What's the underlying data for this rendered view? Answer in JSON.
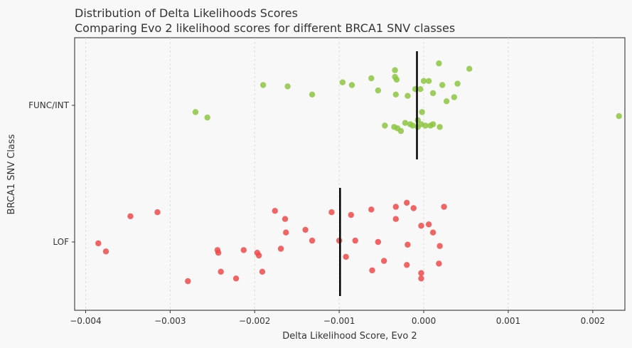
{
  "chart_data": {
    "type": "scatter",
    "title": "Distribution of Delta Likelihoods Scores",
    "subtitle": "Comparing Evo 2 likelihood scores for different BRCA1 SNV classes",
    "xlabel": "Delta Likelihood Score, Evo 2",
    "ylabel": "BRCA1 SNV Class",
    "xlim": [
      -0.00413,
      0.00238
    ],
    "x_ticks": [
      -0.004,
      -0.003,
      -0.002,
      -0.001,
      0.0,
      0.001,
      0.002
    ],
    "x_tick_labels": [
      "−0.004",
      "−0.003",
      "−0.002",
      "−0.001",
      "0.000",
      "0.001",
      "0.002"
    ],
    "grid": "vertical dashed",
    "categories": [
      "FUNC/INT",
      "LOF"
    ],
    "colors": {
      "FUNC/INT": "#8dc63f",
      "LOF": "#f04a4a",
      "median": "#000000",
      "background": "#f8f8f8"
    },
    "series": [
      {
        "name": "FUNC/INT",
        "median": -8e-05,
        "points": [
          {
            "x": -0.0027,
            "j": 0.05
          },
          {
            "x": -0.00256,
            "j": 0.09
          },
          {
            "x": -0.0019,
            "j": -0.15
          },
          {
            "x": -0.00161,
            "j": -0.14
          },
          {
            "x": -0.00132,
            "j": -0.08
          },
          {
            "x": -0.00096,
            "j": -0.17
          },
          {
            "x": -0.00085,
            "j": -0.15
          },
          {
            "x": -0.00062,
            "j": -0.2
          },
          {
            "x": -0.00054,
            "j": -0.11
          },
          {
            "x": -0.00046,
            "j": 0.15
          },
          {
            "x": -0.00034,
            "j": -0.26
          },
          {
            "x": -0.00034,
            "j": -0.21
          },
          {
            "x": -0.00032,
            "j": -0.19
          },
          {
            "x": -0.00033,
            "j": -0.08
          },
          {
            "x": -0.00035,
            "j": 0.16
          },
          {
            "x": -0.00031,
            "j": 0.17
          },
          {
            "x": -0.00027,
            "j": 0.19
          },
          {
            "x": -0.00022,
            "j": 0.13
          },
          {
            "x": -0.00019,
            "j": -0.07
          },
          {
            "x": -0.00016,
            "j": 0.14
          },
          {
            "x": -0.00013,
            "j": 0.15
          },
          {
            "x": -0.0001,
            "j": -0.12
          },
          {
            "x": -7e-05,
            "j": 0.11
          },
          {
            "x": -7e-05,
            "j": 0.16
          },
          {
            "x": -4e-05,
            "j": -0.12
          },
          {
            "x": -3e-05,
            "j": 0.14
          },
          {
            "x": -2e-05,
            "j": 0.05
          },
          {
            "x": 0.0,
            "j": -0.18
          },
          {
            "x": 2e-05,
            "j": 0.15
          },
          {
            "x": 6e-05,
            "j": -0.18
          },
          {
            "x": 8e-05,
            "j": 0.15
          },
          {
            "x": 0.00011,
            "j": 0.14
          },
          {
            "x": 0.00011,
            "j": -0.09
          },
          {
            "x": 0.00018,
            "j": -0.31
          },
          {
            "x": 0.00019,
            "j": 0.16
          },
          {
            "x": 0.00022,
            "j": -0.15
          },
          {
            "x": 0.00027,
            "j": -0.03
          },
          {
            "x": 0.00036,
            "j": -0.06
          },
          {
            "x": 0.0004,
            "j": -0.16
          },
          {
            "x": 0.00054,
            "j": -0.27
          },
          {
            "x": 0.00231,
            "j": 0.08
          }
        ]
      },
      {
        "name": "LOF",
        "median": -0.00099,
        "points": [
          {
            "x": -0.00385,
            "j": 0.01
          },
          {
            "x": -0.00376,
            "j": 0.07
          },
          {
            "x": -0.00347,
            "j": -0.19
          },
          {
            "x": -0.00315,
            "j": -0.22
          },
          {
            "x": -0.00279,
            "j": 0.29
          },
          {
            "x": -0.00244,
            "j": 0.06
          },
          {
            "x": -0.00243,
            "j": 0.08
          },
          {
            "x": -0.0024,
            "j": 0.22
          },
          {
            "x": -0.00222,
            "j": 0.27
          },
          {
            "x": -0.00213,
            "j": 0.06
          },
          {
            "x": -0.00197,
            "j": 0.08
          },
          {
            "x": -0.00195,
            "j": 0.1
          },
          {
            "x": -0.00191,
            "j": 0.22
          },
          {
            "x": -0.00176,
            "j": -0.23
          },
          {
            "x": -0.00169,
            "j": 0.05
          },
          {
            "x": -0.00164,
            "j": -0.17
          },
          {
            "x": -0.00163,
            "j": -0.07
          },
          {
            "x": -0.0014,
            "j": -0.09
          },
          {
            "x": -0.00132,
            "j": -0.01
          },
          {
            "x": -0.00109,
            "j": -0.22
          },
          {
            "x": -0.001,
            "j": -0.01
          },
          {
            "x": -0.00092,
            "j": 0.11
          },
          {
            "x": -0.00086,
            "j": -0.2
          },
          {
            "x": -0.00081,
            "j": -0.01
          },
          {
            "x": -0.00062,
            "j": -0.24
          },
          {
            "x": -0.00061,
            "j": 0.21
          },
          {
            "x": -0.00054,
            "j": -0.0
          },
          {
            "x": -0.00047,
            "j": 0.14
          },
          {
            "x": -0.00033,
            "j": -0.26
          },
          {
            "x": -0.00033,
            "j": -0.17
          },
          {
            "x": -0.0002,
            "j": -0.29
          },
          {
            "x": -0.0002,
            "j": 0.17
          },
          {
            "x": -0.00019,
            "j": 0.02
          },
          {
            "x": -0.00012,
            "j": -0.25
          },
          {
            "x": -3e-05,
            "j": -0.12
          },
          {
            "x": -3e-05,
            "j": 0.23
          },
          {
            "x": -3e-05,
            "j": 0.27
          },
          {
            "x": 6e-05,
            "j": -0.13
          },
          {
            "x": 0.00011,
            "j": -0.07
          },
          {
            "x": 0.00018,
            "j": 0.16
          },
          {
            "x": 0.00019,
            "j": 0.03
          },
          {
            "x": 0.00024,
            "j": -0.26
          }
        ]
      }
    ]
  }
}
